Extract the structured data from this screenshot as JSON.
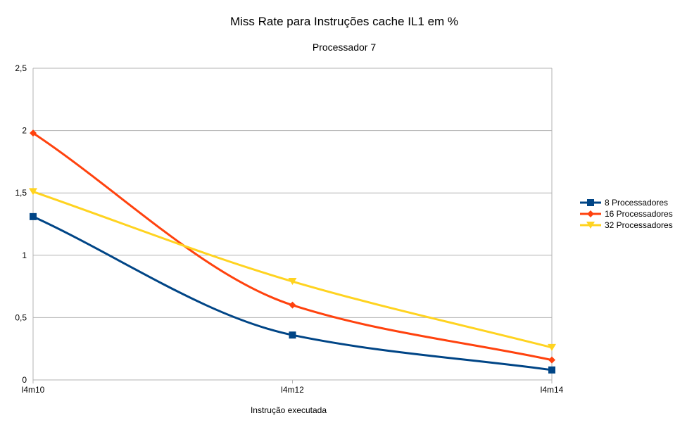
{
  "chart_data": {
    "type": "line",
    "title": "Miss Rate para Instruções cache IL1 em %",
    "subtitle": "Processador 7",
    "xlabel": "Instrução executada",
    "ylabel": "",
    "categories": [
      "l4m10",
      "l4m12",
      "l4m14"
    ],
    "ylim": [
      0,
      2.5
    ],
    "y_ticks": [
      0,
      0.5,
      1,
      1.5,
      2,
      2.5
    ],
    "y_tick_labels": [
      "0",
      "0,5",
      "1",
      "1,5",
      "2",
      "2,5"
    ],
    "grid": true,
    "smooth": true,
    "legend_position": "right",
    "series": [
      {
        "name": "8 Processadores",
        "values": [
          1.31,
          0.36,
          0.08
        ],
        "color": "#004586",
        "marker": "square"
      },
      {
        "name": "16 Processadores",
        "values": [
          1.98,
          0.6,
          0.16
        ],
        "color": "#ff420e",
        "marker": "diamond"
      },
      {
        "name": "32 Processadores",
        "values": [
          1.51,
          0.79,
          0.26
        ],
        "color": "#ffd320",
        "marker": "triangle-down"
      }
    ]
  }
}
